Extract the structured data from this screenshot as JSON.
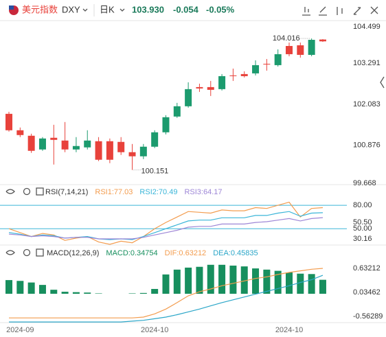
{
  "header": {
    "name": "美元指数",
    "symbol": "DXY",
    "period": "日K",
    "price": "103.930",
    "change": "-0.054",
    "change_pct": "-0.05%"
  },
  "chart_data": [
    {
      "type": "candlestick",
      "open": [
        101.801,
        101.318,
        101.157,
        100.754,
        101.097,
        101.016,
        100.754,
        100.815,
        100.996,
        100.996,
        100.976,
        100.674,
        100.553,
        100.835,
        101.258,
        101.721,
        102.023,
        102.586,
        102.586,
        102.526,
        102.929,
        102.969,
        102.989,
        103.271,
        103.231,
        103.794,
        103.814,
        103.533,
        103.984
      ],
      "high": [
        101.862,
        101.399,
        101.217,
        101.117,
        101.479,
        101.56,
        101.117,
        101.318,
        101.117,
        101.076,
        101.117,
        100.915,
        100.915,
        101.318,
        101.761,
        102.123,
        102.727,
        102.687,
        102.768,
        102.969,
        103.13,
        103.049,
        103.372,
        103.412,
        103.694,
        103.895,
        103.895,
        104.016,
        103.996
      ],
      "low": [
        101.278,
        101.117,
        100.654,
        100.714,
        100.311,
        100.674,
        100.674,
        100.754,
        100.412,
        100.352,
        100.593,
        100.151,
        100.472,
        100.795,
        101.197,
        101.681,
        101.982,
        102.445,
        102.325,
        102.486,
        102.768,
        102.868,
        102.929,
        103.07,
        103.19,
        103.492,
        103.452,
        103.492,
        103.915
      ],
      "close": [
        101.318,
        101.177,
        100.714,
        101.076,
        101.036,
        100.754,
        100.855,
        101.016,
        100.452,
        100.452,
        100.674,
        100.553,
        100.835,
        101.258,
        101.701,
        102.023,
        102.526,
        102.546,
        102.506,
        102.908,
        102.908,
        102.908,
        103.231,
        103.251,
        103.553,
        103.553,
        103.533,
        103.975,
        103.93
      ],
      "up_color": "#1c9b6e",
      "down_color": "#e8423b",
      "high_label": 104.016,
      "low_label": 100.151,
      "ylim": [
        99.6,
        104.54
      ],
      "yticks": [
        104.499,
        103.291,
        102.083,
        100.876,
        99.668
      ]
    },
    {
      "type": "line",
      "title": "RSI(7,14,21)",
      "series": [
        {
          "name": "RSI1:77.03",
          "color": "#f39c4e",
          "values": [
            50,
            45,
            40,
            44,
            42,
            35,
            38,
            40,
            33,
            30,
            34,
            32,
            40,
            50,
            58,
            65,
            72,
            71,
            70,
            74,
            73,
            73,
            77,
            76,
            80,
            84,
            65,
            76,
            77.03
          ]
        },
        {
          "name": "RSI2:70.49",
          "color": "#3ab5d8",
          "values": [
            45,
            43,
            40,
            42,
            41,
            38,
            39,
            40,
            37,
            36,
            37,
            36,
            40,
            45,
            50,
            55,
            60,
            61,
            61,
            64,
            64,
            64,
            67,
            67,
            70,
            72,
            66,
            70,
            70.49
          ]
        },
        {
          "name": "RSI3:64.17",
          "color": "#9d86d6",
          "values": [
            43,
            42,
            40,
            41,
            40,
            38,
            39,
            39,
            37,
            37,
            37,
            37,
            39,
            42,
            45,
            48,
            52,
            53,
            53,
            56,
            56,
            56,
            58,
            59,
            61,
            63,
            60,
            63,
            64.17
          ]
        }
      ],
      "ref_lines": [
        80,
        50
      ],
      "ylim": [
        30,
        88
      ],
      "yticks": [
        {
          "value": 80,
          "label": "80.00"
        },
        {
          "value": 50.5,
          "label": "50.50"
        },
        {
          "value": 50,
          "label": "50.00"
        },
        30.16
      ]
    },
    {
      "type": "combo",
      "title": "MACD(12,26,9)",
      "categories": [
        null,
        "2024-09",
        null,
        null,
        null,
        null,
        null,
        null,
        null,
        null,
        null,
        null,
        null,
        "2024-10",
        null,
        null,
        null,
        null,
        null,
        null,
        null,
        null,
        null,
        null,
        null,
        "2024-10",
        null,
        null,
        null
      ],
      "series": [
        {
          "name": "MACD:0.34754",
          "kind": "bar",
          "color": "#178f5e",
          "values": [
            0.34,
            0.32,
            0.28,
            0.22,
            0.1,
            0.05,
            0.04,
            0.03,
            0.01,
            0.0,
            0.0,
            0.01,
            0.02,
            0.12,
            0.48,
            0.6,
            0.65,
            0.67,
            0.72,
            0.72,
            0.7,
            0.68,
            0.63,
            0.6,
            0.57,
            0.53,
            0.5,
            0.49,
            0.34754
          ]
        },
        {
          "name": "DIF:0.63212",
          "kind": "line",
          "color": "#f39c4e",
          "values": [
            -0.6,
            -0.6,
            -0.6,
            -0.6,
            -0.6,
            -0.6,
            -0.6,
            -0.6,
            -0.6,
            -0.6,
            -0.6,
            -0.6,
            -0.58,
            -0.5,
            -0.38,
            -0.22,
            -0.05,
            0.05,
            0.12,
            0.2,
            0.26,
            0.32,
            0.38,
            0.42,
            0.48,
            0.53,
            0.57,
            0.61,
            0.63212
          ]
        },
        {
          "name": "DEA:0.45835",
          "kind": "line",
          "color": "#2aa6c8",
          "values": [
            -0.7,
            -0.7,
            -0.7,
            -0.7,
            -0.7,
            -0.7,
            -0.7,
            -0.7,
            -0.7,
            -0.7,
            -0.7,
            -0.68,
            -0.66,
            -0.62,
            -0.58,
            -0.52,
            -0.45,
            -0.38,
            -0.3,
            -0.22,
            -0.15,
            -0.08,
            -0.01,
            0.06,
            0.13,
            0.2,
            0.28,
            0.35,
            0.45835
          ]
        }
      ],
      "ylim": [
        -0.75,
        1.16
      ],
      "yticks": [
        0.63212,
        0.03462,
        -0.56289
      ]
    }
  ]
}
